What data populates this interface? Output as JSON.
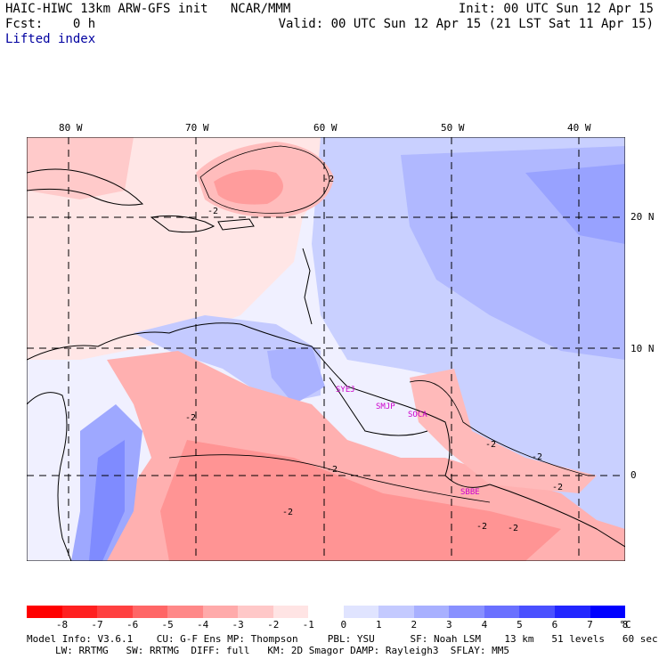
{
  "header": {
    "title_left": "HAIC-HIWC 13km ARW-GFS init   NCAR/MMM",
    "fcst_line": "Fcst:    0 h",
    "field_name": "Lifted index",
    "init_line": "Init: 00 UTC Sun 12 Apr 15",
    "valid_line": "Valid: 00 UTC Sun 12 Apr 15 (21 LST Sat 11 Apr 15)"
  },
  "map": {
    "lon_labels": [
      "80 W",
      "70 W",
      "60 W",
      "50 W",
      "40 W"
    ],
    "lat_labels": [
      "20 N",
      "10 N",
      "0"
    ],
    "stations": [
      "SYEJ",
      "SMJP",
      "SOCA",
      "SBBE"
    ],
    "contour_labels": [
      "-2",
      "-2",
      "-2",
      "-2",
      "-2",
      "-2",
      "-2",
      "-2",
      "-2",
      "-2"
    ]
  },
  "colorbar": {
    "tick_labels": [
      "-8",
      "-7",
      "-6",
      "-5",
      "-4",
      "-3",
      "-2",
      "-1",
      "0",
      "1",
      "2",
      "3",
      "4",
      "5",
      "6",
      "7",
      "8"
    ],
    "unit": "°C",
    "colors": [
      "#ff0000",
      "#ff2020",
      "#ff4040",
      "#ff6666",
      "#ff8888",
      "#ffaaaa",
      "#ffc8c8",
      "#ffe4e4",
      "#ffffff",
      "#e0e4ff",
      "#c4caff",
      "#a8b0ff",
      "#8890ff",
      "#6a70ff",
      "#4a50ff",
      "#2226ff",
      "#0000ff"
    ]
  },
  "footer": {
    "line1": "Model Info: V3.6.1    CU: G-F Ens MP: Thompson     PBL: YSU      SF: Noah LSM    13 km   51 levels   60 sec",
    "line2": "LW: RRTMG   SW: RRTMG  DIFF: full   KM: 2D Smagor DAMP: Rayleigh3  SFLAY: MM5"
  }
}
